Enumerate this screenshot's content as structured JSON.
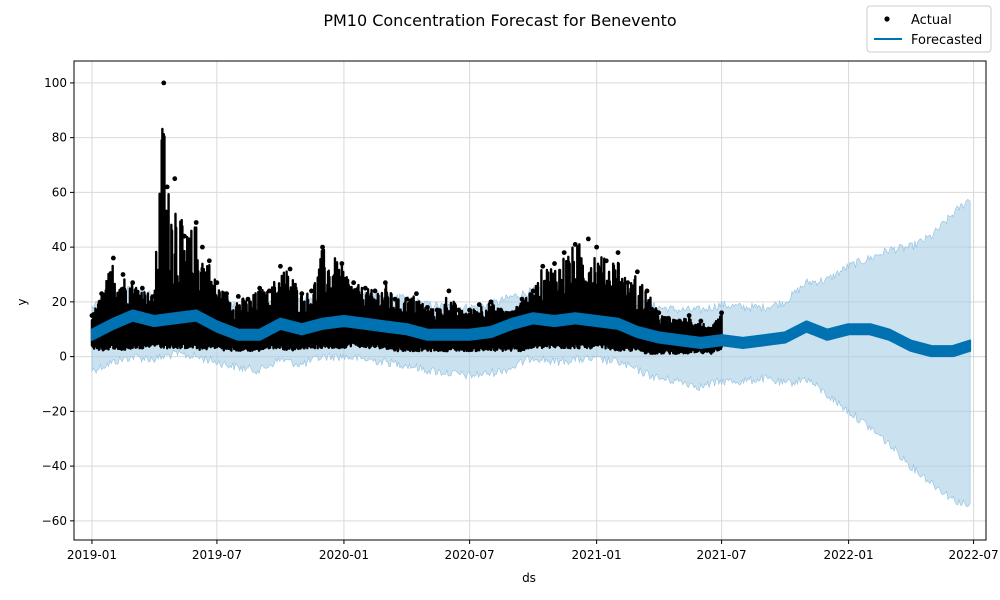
{
  "chart_data": {
    "type": "line",
    "title": "PM10 Concentration Forecast for Benevento",
    "xlabel": "ds",
    "ylabel": "y",
    "xlim": [
      "2018-12-06",
      "2022-07-19"
    ],
    "ylim": [
      -67,
      108
    ],
    "x_ticks": [
      "2019-01",
      "2019-07",
      "2020-01",
      "2020-07",
      "2021-01",
      "2021-07",
      "2022-01",
      "2022-07"
    ],
    "y_ticks": [
      -60,
      -40,
      -20,
      0,
      20,
      40,
      60,
      80,
      100
    ],
    "grid": true,
    "legend_position": "top-right",
    "colors": {
      "actual": "#000000",
      "forecast": "#0072B2",
      "interval": "#A6CDE6"
    },
    "series": [
      {
        "name": "Actual",
        "kind": "scatter",
        "actual_end": "2021-07-01",
        "x": [
          "2019-01-01",
          "2019-01-15",
          "2019-02-01",
          "2019-02-15",
          "2019-03-01",
          "2019-03-15",
          "2019-04-01",
          "2019-04-15",
          "2019-04-20",
          "2019-05-01",
          "2019-05-15",
          "2019-06-01",
          "2019-06-10",
          "2019-06-20",
          "2019-07-01",
          "2019-07-15",
          "2019-08-01",
          "2019-08-15",
          "2019-09-01",
          "2019-09-15",
          "2019-10-01",
          "2019-10-15",
          "2019-11-01",
          "2019-11-15",
          "2019-12-01",
          "2019-12-29",
          "2020-01-15",
          "2020-02-01",
          "2020-02-15",
          "2020-03-01",
          "2020-03-15",
          "2020-04-01",
          "2020-04-15",
          "2020-05-01",
          "2020-05-15",
          "2020-06-01",
          "2020-06-15",
          "2020-07-01",
          "2020-07-15",
          "2020-08-01",
          "2020-08-15",
          "2020-09-01",
          "2020-09-15",
          "2020-10-01",
          "2020-10-15",
          "2020-11-01",
          "2020-11-15",
          "2020-12-01",
          "2020-12-20",
          "2021-01-01",
          "2021-01-15",
          "2021-02-01",
          "2021-02-15",
          "2021-03-01",
          "2021-03-15",
          "2021-04-01",
          "2021-04-15",
          "2021-05-01",
          "2021-05-15",
          "2021-06-01",
          "2021-06-15",
          "2021-07-01"
        ],
        "y_low": [
          3,
          2,
          3,
          2,
          3,
          3,
          4,
          3,
          3,
          3,
          3,
          3,
          2,
          3,
          3,
          2,
          2,
          2,
          2,
          3,
          3,
          2,
          3,
          3,
          3,
          3,
          4,
          3,
          3,
          3,
          2,
          2,
          2,
          2,
          2,
          2,
          2,
          2,
          2,
          2,
          2,
          2,
          2,
          3,
          3,
          3,
          3,
          3,
          3,
          3,
          3,
          2,
          2,
          2,
          1,
          1,
          1,
          1,
          1,
          1,
          1,
          2
        ],
        "y_high": [
          15,
          23,
          36,
          30,
          27,
          25,
          22,
          100,
          62,
          65,
          44,
          49,
          40,
          35,
          27,
          23,
          22,
          21,
          25,
          24,
          33,
          32,
          23,
          24,
          40,
          34,
          27,
          25,
          24,
          27,
          21,
          21,
          23,
          18,
          17,
          24,
          17,
          17,
          19,
          20,
          17,
          16,
          21,
          24,
          33,
          34,
          38,
          41,
          43,
          40,
          35,
          38,
          27,
          31,
          24,
          16,
          14,
          13,
          15,
          13,
          10,
          16
        ]
      },
      {
        "name": "Forecasted",
        "kind": "line",
        "x": [
          "2019-01-01",
          "2019-02-01",
          "2019-03-01",
          "2019-04-01",
          "2019-05-01",
          "2019-06-01",
          "2019-07-01",
          "2019-08-01",
          "2019-09-01",
          "2019-10-01",
          "2019-11-01",
          "2019-12-01",
          "2020-01-01",
          "2020-02-01",
          "2020-03-01",
          "2020-04-01",
          "2020-05-01",
          "2020-06-01",
          "2020-07-01",
          "2020-08-01",
          "2020-09-01",
          "2020-10-01",
          "2020-11-01",
          "2020-12-01",
          "2021-01-01",
          "2021-02-01",
          "2021-03-01",
          "2021-04-01",
          "2021-05-01",
          "2021-06-01",
          "2021-07-01",
          "2021-08-01",
          "2021-09-01",
          "2021-10-01",
          "2021-11-01",
          "2021-12-01",
          "2022-01-01",
          "2022-02-01",
          "2022-03-01",
          "2022-04-01",
          "2022-05-01",
          "2022-06-01",
          "2022-06-26"
        ],
        "y": [
          8,
          12,
          15,
          13,
          14,
          15,
          11,
          8,
          8,
          12,
          10,
          12,
          13,
          12,
          11,
          10,
          8,
          8,
          8,
          9,
          12,
          14,
          13,
          14,
          13,
          12,
          9,
          7,
          6,
          5,
          6,
          5,
          6,
          7,
          11,
          8,
          10,
          10,
          8,
          4,
          2,
          2,
          4
        ],
        "y_lower": [
          -5,
          -2,
          0,
          -1,
          1,
          0,
          -2,
          -4,
          -5,
          -1,
          -3,
          0,
          0,
          -1,
          -2,
          -3,
          -5,
          -6,
          -7,
          -6,
          -4,
          0,
          -2,
          -1,
          -1,
          -2,
          -5,
          -8,
          -9,
          -11,
          -9,
          -9,
          -8,
          -10,
          -8,
          -14,
          -20,
          -26,
          -32,
          -40,
          -46,
          -52,
          -55
        ],
        "y_upper": [
          18,
          22,
          25,
          22,
          24,
          24,
          22,
          18,
          18,
          22,
          20,
          23,
          24,
          23,
          22,
          21,
          19,
          18,
          18,
          19,
          22,
          24,
          24,
          25,
          24,
          23,
          20,
          18,
          17,
          17,
          19,
          18,
          18,
          20,
          27,
          28,
          33,
          36,
          39,
          40,
          44,
          52,
          58
        ]
      }
    ]
  }
}
